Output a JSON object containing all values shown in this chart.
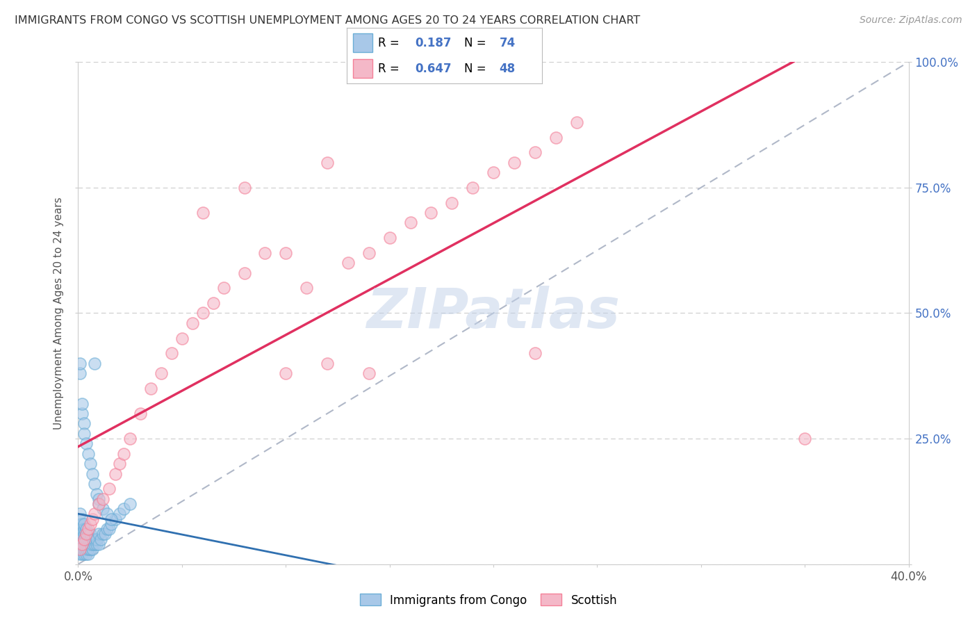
{
  "title": "IMMIGRANTS FROM CONGO VS SCOTTISH UNEMPLOYMENT AMONG AGES 20 TO 24 YEARS CORRELATION CHART",
  "source": "Source: ZipAtlas.com",
  "ylabel": "Unemployment Among Ages 20 to 24 years",
  "xlim": [
    0.0,
    0.4
  ],
  "ylim": [
    0.0,
    1.0
  ],
  "blue_color": "#a8c8e8",
  "blue_edge_color": "#6baed6",
  "pink_color": "#f4b8c8",
  "pink_edge_color": "#f48098",
  "blue_line_color": "#3070b0",
  "pink_line_color": "#e03060",
  "dash_line_color": "#b0b8c8",
  "watermark": "ZIPatlas",
  "watermark_color": "#c0d0e8",
  "background_color": "#ffffff",
  "grid_color": "#cccccc",
  "tick_label_color": "#4472c4",
  "legend_text_color": "#000000",
  "legend_value_color": "#4472c4",
  "pink_scatter_x": [
    0.001,
    0.002,
    0.003,
    0.004,
    0.005,
    0.006,
    0.007,
    0.008,
    0.01,
    0.012,
    0.015,
    0.018,
    0.02,
    0.022,
    0.025,
    0.03,
    0.035,
    0.04,
    0.045,
    0.05,
    0.055,
    0.06,
    0.065,
    0.07,
    0.08,
    0.09,
    0.1,
    0.11,
    0.12,
    0.13,
    0.14,
    0.15,
    0.16,
    0.17,
    0.18,
    0.19,
    0.2,
    0.21,
    0.22,
    0.23,
    0.24,
    0.14,
    0.22,
    0.35,
    0.06,
    0.08,
    0.1,
    0.12
  ],
  "pink_scatter_y": [
    0.03,
    0.04,
    0.05,
    0.06,
    0.07,
    0.08,
    0.09,
    0.1,
    0.12,
    0.13,
    0.15,
    0.18,
    0.2,
    0.22,
    0.25,
    0.3,
    0.35,
    0.38,
    0.42,
    0.45,
    0.48,
    0.5,
    0.52,
    0.55,
    0.58,
    0.62,
    0.62,
    0.55,
    0.8,
    0.6,
    0.62,
    0.65,
    0.68,
    0.7,
    0.72,
    0.75,
    0.78,
    0.8,
    0.82,
    0.85,
    0.88,
    0.38,
    0.42,
    0.25,
    0.7,
    0.75,
    0.38,
    0.4
  ],
  "blue_scatter_x": [
    0.001,
    0.001,
    0.001,
    0.001,
    0.001,
    0.001,
    0.001,
    0.001,
    0.002,
    0.002,
    0.002,
    0.002,
    0.002,
    0.002,
    0.002,
    0.002,
    0.003,
    0.003,
    0.003,
    0.003,
    0.003,
    0.003,
    0.003,
    0.004,
    0.004,
    0.004,
    0.004,
    0.004,
    0.004,
    0.005,
    0.005,
    0.005,
    0.005,
    0.005,
    0.006,
    0.006,
    0.006,
    0.006,
    0.007,
    0.007,
    0.007,
    0.008,
    0.008,
    0.009,
    0.009,
    0.01,
    0.01,
    0.011,
    0.012,
    0.013,
    0.014,
    0.015,
    0.016,
    0.018,
    0.02,
    0.022,
    0.025,
    0.001,
    0.001,
    0.002,
    0.002,
    0.003,
    0.003,
    0.004,
    0.005,
    0.006,
    0.007,
    0.008,
    0.008,
    0.009,
    0.01,
    0.01,
    0.012,
    0.014,
    0.016
  ],
  "blue_scatter_y": [
    0.02,
    0.03,
    0.04,
    0.05,
    0.06,
    0.07,
    0.08,
    0.1,
    0.02,
    0.03,
    0.04,
    0.05,
    0.06,
    0.07,
    0.08,
    0.09,
    0.02,
    0.03,
    0.04,
    0.05,
    0.06,
    0.07,
    0.08,
    0.02,
    0.03,
    0.04,
    0.05,
    0.06,
    0.07,
    0.02,
    0.03,
    0.04,
    0.05,
    0.06,
    0.03,
    0.04,
    0.05,
    0.06,
    0.03,
    0.04,
    0.05,
    0.04,
    0.05,
    0.04,
    0.05,
    0.04,
    0.06,
    0.05,
    0.06,
    0.06,
    0.07,
    0.07,
    0.08,
    0.09,
    0.1,
    0.11,
    0.12,
    0.38,
    0.4,
    0.3,
    0.32,
    0.28,
    0.26,
    0.24,
    0.22,
    0.2,
    0.18,
    0.16,
    0.4,
    0.14,
    0.13,
    0.12,
    0.11,
    0.1,
    0.09
  ]
}
